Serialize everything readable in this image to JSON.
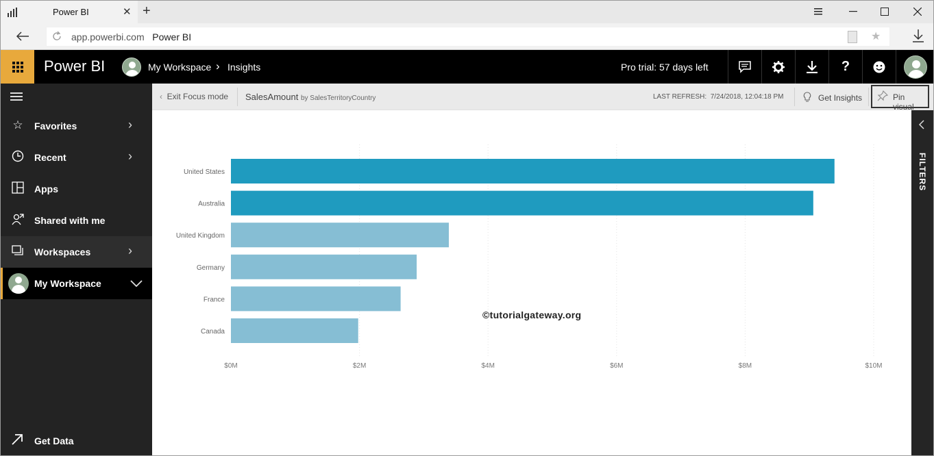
{
  "browser": {
    "tab_title": "Power BI",
    "close_glyph": "✕",
    "new_tab_glyph": "+",
    "url_domain": "app.powerbi.com",
    "url_title": "Power BI"
  },
  "header": {
    "brand": "Power BI",
    "breadcrumb": [
      "My Workspace",
      "Insights"
    ],
    "breadcrumb_separator": "›",
    "trial": "Pro trial: 57 days left",
    "icons": [
      "comment-icon",
      "gear-icon",
      "download-icon",
      "help-icon",
      "smiley-icon",
      "profile-icon"
    ]
  },
  "sidebar": {
    "items": [
      {
        "label": "Favorites",
        "icon": "star-icon",
        "has_chevron": true
      },
      {
        "label": "Recent",
        "icon": "clock-icon",
        "has_chevron": true
      },
      {
        "label": "Apps",
        "icon": "apps-icon",
        "has_chevron": false
      },
      {
        "label": "Shared with me",
        "icon": "shared-icon",
        "has_chevron": false
      },
      {
        "label": "Workspaces",
        "icon": "workspaces-icon",
        "has_chevron": true
      },
      {
        "label": "My Workspace",
        "icon": "avatar-icon",
        "has_chevron": true
      }
    ],
    "get_data": "Get Data"
  },
  "focus_toolbar": {
    "exit_label": "Exit Focus mode",
    "visual_title": "SalesAmount",
    "visual_subtitle": "by SalesTerritoryCountry",
    "last_refresh_label": "LAST REFRESH:",
    "last_refresh_value": "7/24/2018, 12:04:18 PM",
    "get_insights": "Get Insights",
    "pin_visual": "Pin visual"
  },
  "filters_label": "FILTERS",
  "watermark": "©tutorialgateway.org",
  "colors": {
    "accent": "#e8a93c",
    "bar_highlight": "#1f9bbf",
    "bar_normal": "#86bed4"
  },
  "chart_data": {
    "type": "bar",
    "orientation": "horizontal",
    "categories": [
      "United States",
      "Australia",
      "United Kingdom",
      "Germany",
      "France",
      "Canada"
    ],
    "values": [
      9.39,
      9.06,
      3.39,
      2.89,
      2.64,
      1.98
    ],
    "highlighted": [
      true,
      true,
      false,
      false,
      false,
      false
    ],
    "value_unit": "millions",
    "xlim": [
      0,
      10
    ],
    "xticks": [
      "$0M",
      "$2M",
      "$4M",
      "$6M",
      "$8M",
      "$10M"
    ],
    "grid": true
  }
}
